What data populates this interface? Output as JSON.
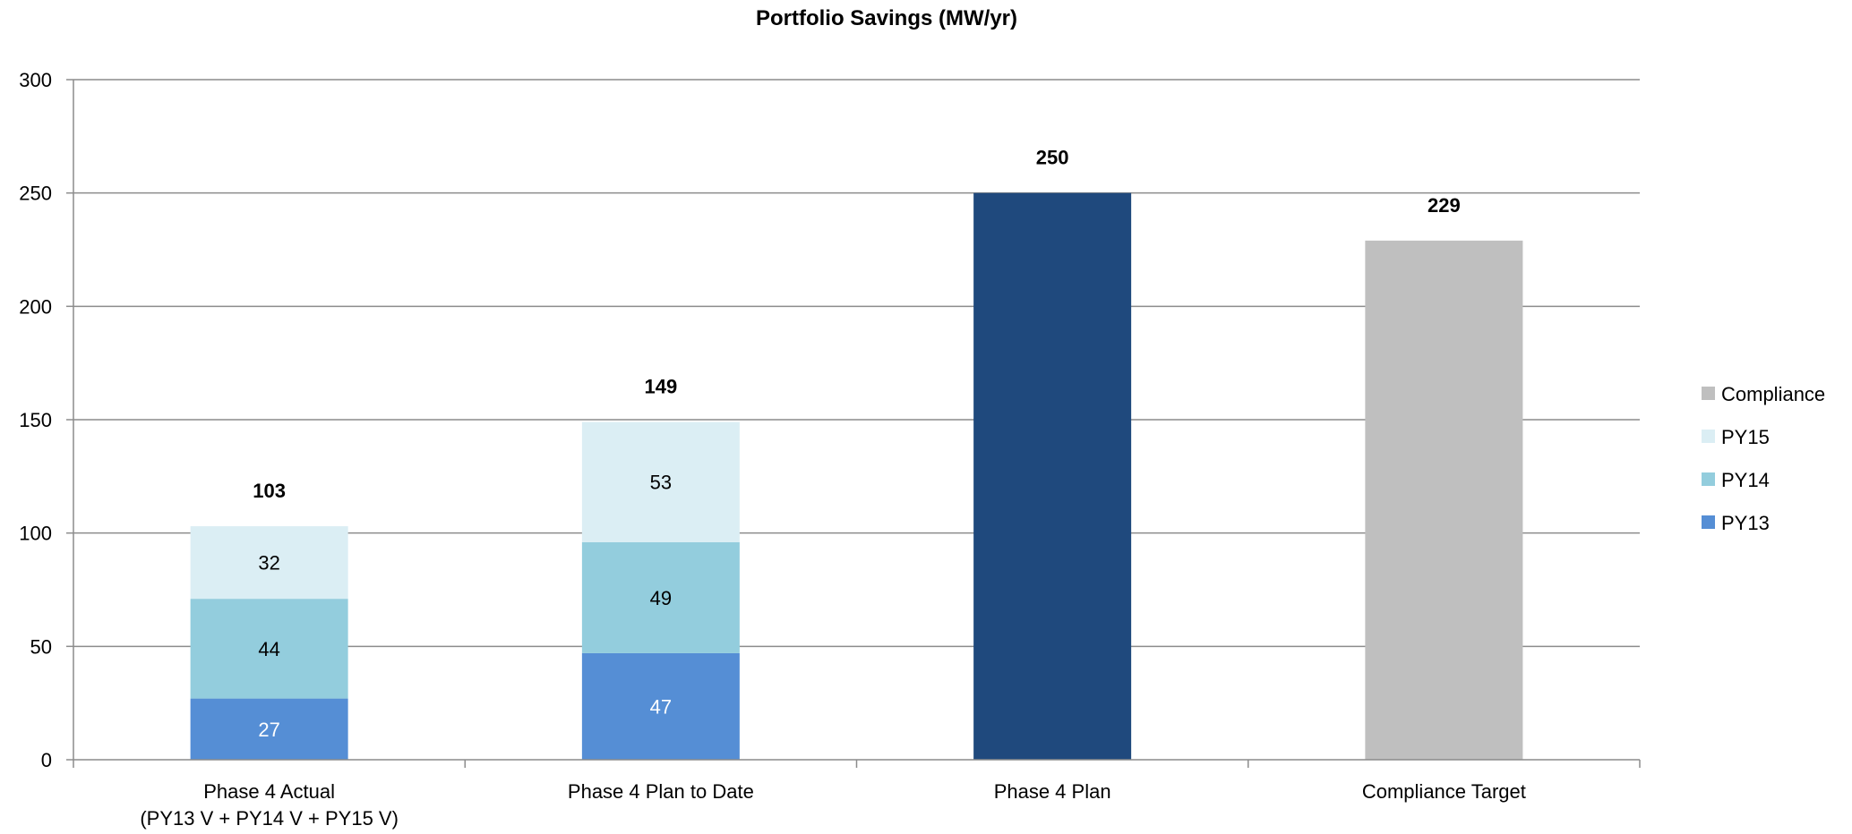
{
  "chart_data": {
    "type": "bar",
    "stacked": true,
    "title": "Portfolio Savings (MW/yr)",
    "xlabel": "",
    "ylabel": "",
    "ylim": [
      0,
      300
    ],
    "yticks": [
      "0",
      "50",
      "100",
      "150",
      "200",
      "250",
      "300"
    ],
    "grid": true,
    "legend_position": "right",
    "categories": [
      [
        "Phase 4 Actual",
        "(PY13 V + PY14 V + PY15 V)"
      ],
      [
        "Phase 4 Plan to Date"
      ],
      [
        "Phase 4 Plan"
      ],
      [
        "Compliance Target"
      ]
    ],
    "series": [
      {
        "name": "PY13",
        "color": "#558ED5",
        "label_color": "#ffffff",
        "values": [
          27,
          47,
          250,
          0
        ],
        "labels": [
          "27",
          "47",
          "",
          ""
        ],
        "colors": [
          "#558ED5",
          "#558ED5",
          "#1F497D",
          "#558ED5"
        ]
      },
      {
        "name": "PY14",
        "color": "#93CDDD",
        "label_color": "#000000",
        "values": [
          44,
          49,
          0,
          0
        ],
        "labels": [
          "44",
          "49",
          "",
          ""
        ]
      },
      {
        "name": "PY15",
        "color": "#DBEEF4",
        "label_color": "#000000",
        "values": [
          32,
          53,
          0,
          0
        ],
        "labels": [
          "32",
          "53",
          "",
          ""
        ]
      },
      {
        "name": "Compliance",
        "color": "#BFBFBF",
        "label_color": "#000000",
        "values": [
          0,
          0,
          0,
          229
        ],
        "labels": [
          "",
          "",
          "",
          ""
        ]
      }
    ],
    "totals": [
      "103",
      "149",
      "250",
      "229"
    ],
    "legend_order": [
      "Compliance",
      "PY15",
      "PY14",
      "PY13"
    ]
  }
}
